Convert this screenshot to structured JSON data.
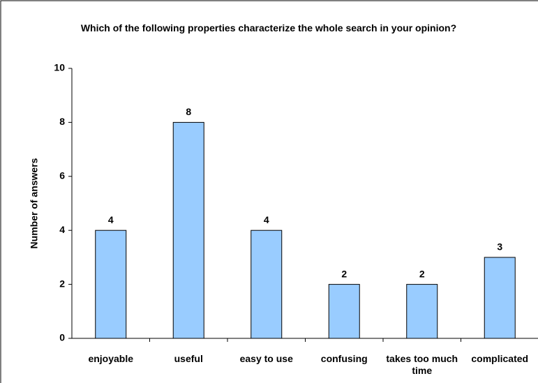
{
  "chart_data": {
    "type": "bar",
    "title": "Which of the following properties characterize the whole search in your opinion?",
    "y_label": "Number of answers",
    "categories": [
      "enjoyable",
      "useful",
      "easy to use",
      "confusing",
      "takes too much time",
      "complicated"
    ],
    "values": [
      4,
      8,
      4,
      2,
      2,
      3
    ],
    "color": "#99ccff",
    "ylim": [
      0,
      10
    ],
    "yticks": [
      0,
      2,
      4,
      6,
      8,
      10
    ],
    "grid": false
  }
}
